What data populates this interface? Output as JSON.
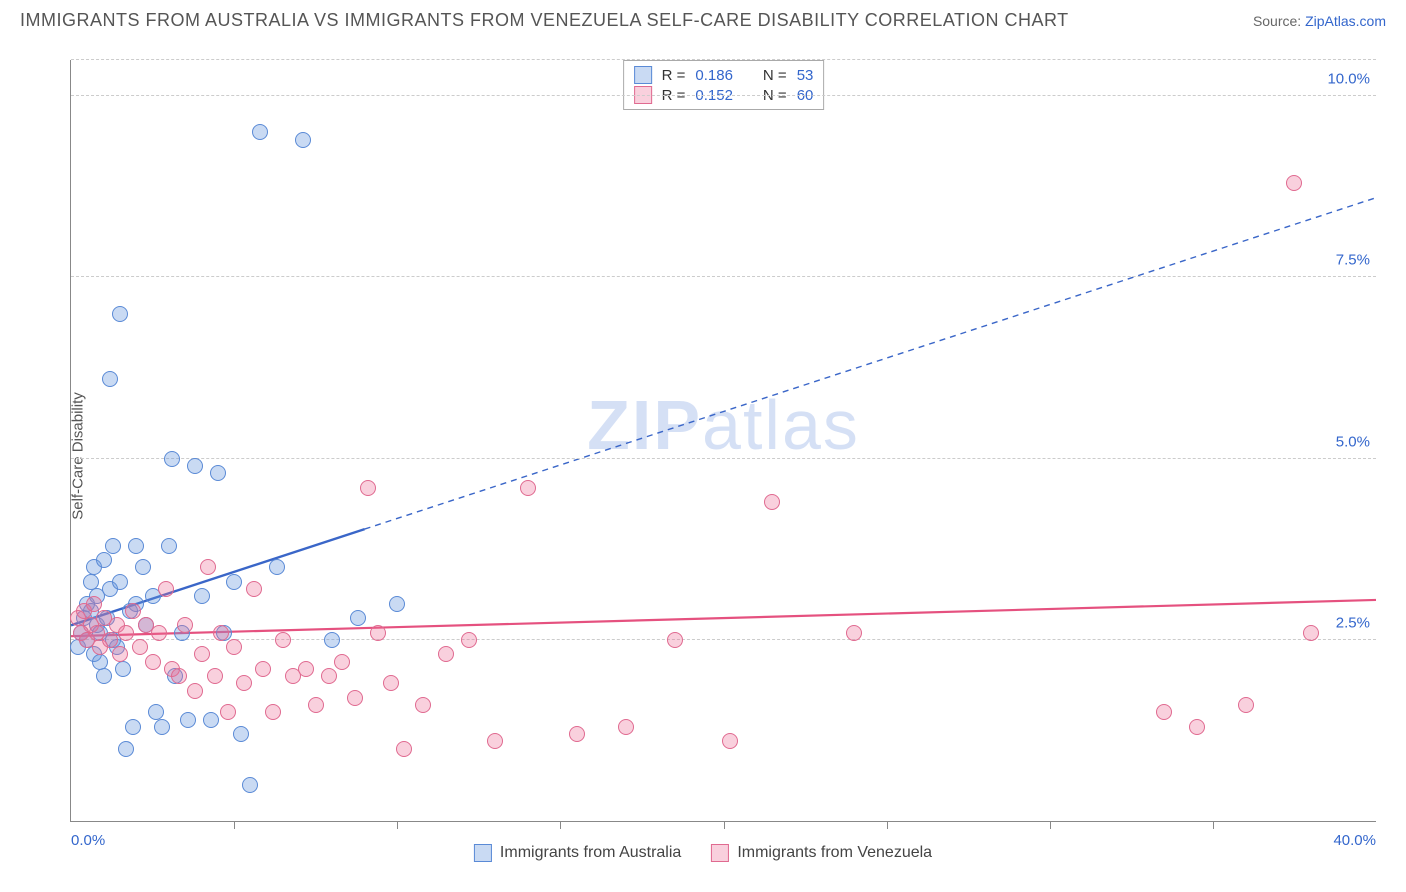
{
  "title": "IMMIGRANTS FROM AUSTRALIA VS IMMIGRANTS FROM VENEZUELA SELF-CARE DISABILITY CORRELATION CHART",
  "source_prefix": "Source: ",
  "source_name": "ZipAtlas.com",
  "ylabel": "Self-Care Disability",
  "watermark_a": "ZIP",
  "watermark_b": "atlas",
  "chart": {
    "type": "scatter",
    "xlim": [
      0,
      40
    ],
    "ylim": [
      0,
      10.5
    ],
    "x_ticks_minor": [
      5,
      10,
      15,
      20,
      25,
      30,
      35
    ],
    "x_ticks_labeled": [
      {
        "v": 0,
        "label": "0.0%",
        "align": "left"
      },
      {
        "v": 40,
        "label": "40.0%",
        "align": "right"
      }
    ],
    "y_gridlines": [
      2.5,
      5.0,
      7.5,
      10.0
    ],
    "y_tick_labels": [
      "2.5%",
      "5.0%",
      "7.5%",
      "10.0%"
    ],
    "grid_color": "#cccccc",
    "axis_color": "#888888",
    "background": "#ffffff",
    "point_radius": 8,
    "series": [
      {
        "id": "aus",
        "name": "Immigrants from Australia",
        "fill": "rgba(99,148,222,0.35)",
        "stroke": "#5a8ad6",
        "line_color": "#3a66c8",
        "R": "0.186",
        "N": "53",
        "trend": {
          "x1": 0,
          "y1": 2.7,
          "x2": 40,
          "y2": 8.6,
          "solid_until_x": 9
        },
        "points": [
          [
            0.2,
            2.4
          ],
          [
            0.3,
            2.6
          ],
          [
            0.4,
            2.8
          ],
          [
            0.5,
            2.5
          ],
          [
            0.5,
            3.0
          ],
          [
            0.6,
            2.9
          ],
          [
            0.6,
            3.3
          ],
          [
            0.7,
            2.3
          ],
          [
            0.7,
            3.5
          ],
          [
            0.8,
            2.7
          ],
          [
            0.8,
            3.1
          ],
          [
            0.9,
            2.2
          ],
          [
            0.9,
            2.6
          ],
          [
            1.0,
            3.6
          ],
          [
            1.0,
            2.0
          ],
          [
            1.1,
            2.8
          ],
          [
            1.2,
            3.2
          ],
          [
            1.2,
            6.1
          ],
          [
            1.3,
            2.5
          ],
          [
            1.3,
            3.8
          ],
          [
            1.4,
            2.4
          ],
          [
            1.5,
            3.3
          ],
          [
            1.5,
            7.0
          ],
          [
            1.6,
            2.1
          ],
          [
            1.7,
            1.0
          ],
          [
            1.8,
            2.9
          ],
          [
            1.9,
            1.3
          ],
          [
            2.0,
            3.0
          ],
          [
            2.0,
            3.8
          ],
          [
            2.2,
            3.5
          ],
          [
            2.3,
            2.7
          ],
          [
            2.5,
            3.1
          ],
          [
            2.6,
            1.5
          ],
          [
            2.8,
            1.3
          ],
          [
            3.0,
            3.8
          ],
          [
            3.1,
            5.0
          ],
          [
            3.2,
            2.0
          ],
          [
            3.4,
            2.6
          ],
          [
            3.6,
            1.4
          ],
          [
            3.8,
            4.9
          ],
          [
            4.0,
            3.1
          ],
          [
            4.3,
            1.4
          ],
          [
            4.5,
            4.8
          ],
          [
            4.7,
            2.6
          ],
          [
            5.0,
            3.3
          ],
          [
            5.2,
            1.2
          ],
          [
            5.5,
            0.5
          ],
          [
            5.8,
            9.5
          ],
          [
            6.3,
            3.5
          ],
          [
            7.1,
            9.4
          ],
          [
            8.0,
            2.5
          ],
          [
            8.8,
            2.8
          ],
          [
            10.0,
            3.0
          ]
        ]
      },
      {
        "id": "ven",
        "name": "Immigrants from Venezuela",
        "fill": "rgba(235,110,150,0.32)",
        "stroke": "#e06a90",
        "line_color": "#e5517f",
        "R": "0.152",
        "N": "60",
        "trend": {
          "x1": 0,
          "y1": 2.55,
          "x2": 40,
          "y2": 3.05,
          "solid_until_x": 40
        },
        "points": [
          [
            0.2,
            2.8
          ],
          [
            0.3,
            2.6
          ],
          [
            0.4,
            2.9
          ],
          [
            0.5,
            2.5
          ],
          [
            0.6,
            2.7
          ],
          [
            0.7,
            3.0
          ],
          [
            0.8,
            2.6
          ],
          [
            0.9,
            2.4
          ],
          [
            1.0,
            2.8
          ],
          [
            1.2,
            2.5
          ],
          [
            1.4,
            2.7
          ],
          [
            1.5,
            2.3
          ],
          [
            1.7,
            2.6
          ],
          [
            1.9,
            2.9
          ],
          [
            2.1,
            2.4
          ],
          [
            2.3,
            2.7
          ],
          [
            2.5,
            2.2
          ],
          [
            2.7,
            2.6
          ],
          [
            2.9,
            3.2
          ],
          [
            3.1,
            2.1
          ],
          [
            3.3,
            2.0
          ],
          [
            3.5,
            2.7
          ],
          [
            3.8,
            1.8
          ],
          [
            4.0,
            2.3
          ],
          [
            4.2,
            3.5
          ],
          [
            4.4,
            2.0
          ],
          [
            4.6,
            2.6
          ],
          [
            4.8,
            1.5
          ],
          [
            5.0,
            2.4
          ],
          [
            5.3,
            1.9
          ],
          [
            5.6,
            3.2
          ],
          [
            5.9,
            2.1
          ],
          [
            6.2,
            1.5
          ],
          [
            6.5,
            2.5
          ],
          [
            6.8,
            2.0
          ],
          [
            7.2,
            2.1
          ],
          [
            7.5,
            1.6
          ],
          [
            7.9,
            2.0
          ],
          [
            8.3,
            2.2
          ],
          [
            8.7,
            1.7
          ],
          [
            9.1,
            4.6
          ],
          [
            9.4,
            2.6
          ],
          [
            9.8,
            1.9
          ],
          [
            10.2,
            1.0
          ],
          [
            10.8,
            1.6
          ],
          [
            11.5,
            2.3
          ],
          [
            12.2,
            2.5
          ],
          [
            13.0,
            1.1
          ],
          [
            14.0,
            4.6
          ],
          [
            15.5,
            1.2
          ],
          [
            17.0,
            1.3
          ],
          [
            18.5,
            2.5
          ],
          [
            20.2,
            1.1
          ],
          [
            21.5,
            4.4
          ],
          [
            24.0,
            2.6
          ],
          [
            33.5,
            1.5
          ],
          [
            34.5,
            1.3
          ],
          [
            36.0,
            1.6
          ],
          [
            37.5,
            8.8
          ],
          [
            38.0,
            2.6
          ]
        ]
      }
    ]
  },
  "legend_top": {
    "r_label": "R =",
    "n_label": "N ="
  },
  "colors": {
    "title": "#555555",
    "tick_text": "#3366cc"
  }
}
